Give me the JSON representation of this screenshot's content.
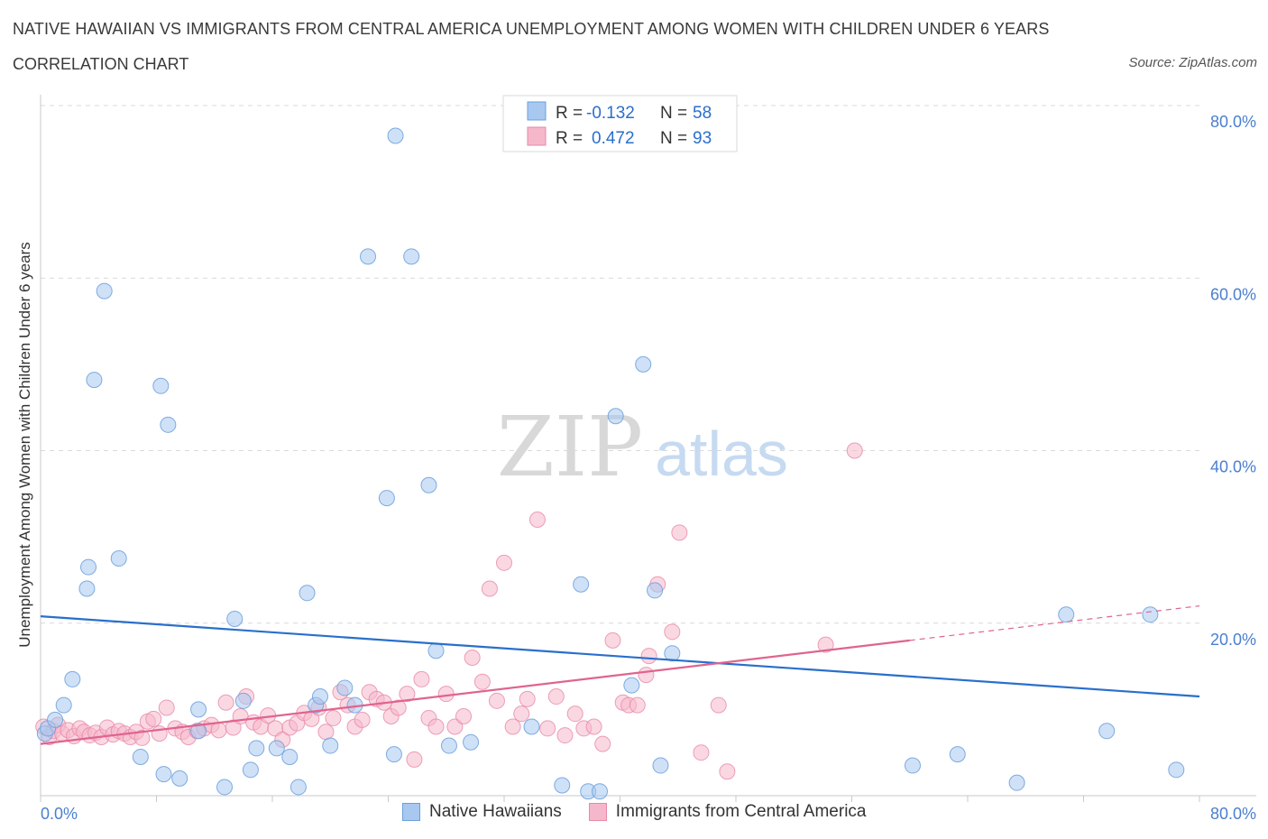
{
  "header": {
    "title": "NATIVE HAWAIIAN VS IMMIGRANTS FROM CENTRAL AMERICA UNEMPLOYMENT AMONG WOMEN WITH CHILDREN UNDER 6 YEARS",
    "subtitle": "CORRELATION CHART",
    "source": "Source: ZipAtlas.com"
  },
  "legend_box": {
    "rows": [
      {
        "r_label": "R =",
        "r_value": "-0.132",
        "n_label": "N =",
        "n_value": "58"
      },
      {
        "r_label": "R =",
        "r_value": "0.472",
        "n_label": "N =",
        "n_value": "93"
      }
    ]
  },
  "watermark": {
    "zip": "ZIP",
    "atlas": "atlas"
  },
  "colors": {
    "blue_fill": "#a8c8f0",
    "blue_stroke": "#6a9fdc",
    "blue_line": "#2a6fcb",
    "pink_fill": "#f5b8cb",
    "pink_stroke": "#e888a8",
    "pink_line": "#e0648e",
    "axis_text": "#4a7fd0",
    "grid": "#d9d9d9"
  },
  "chart_data": {
    "type": "scatter",
    "title": "NATIVE HAWAIIAN VS IMMIGRANTS FROM CENTRAL AMERICA UNEMPLOYMENT AMONG WOMEN WITH CHILDREN UNDER 6 YEARS",
    "xlabel": "",
    "ylabel": "Unemployment Among Women with Children Under 6 years",
    "xlim": [
      0,
      80
    ],
    "ylim": [
      0,
      80
    ],
    "x_tick_labels": [
      "0.0%",
      "80.0%"
    ],
    "y_tick_labels": [
      "20.0%",
      "40.0%",
      "60.0%",
      "80.0%"
    ],
    "y_ticks": [
      20,
      40,
      60,
      80
    ],
    "grid": true,
    "legend_position": "bottom",
    "series": [
      {
        "name": "Native Hawaiians",
        "color": "#a8c8f0",
        "trend": {
          "x": [
            0,
            80
          ],
          "y": [
            20.8,
            11.5
          ]
        },
        "points": [
          [
            0.3,
            7.2
          ],
          [
            0.5,
            7.8
          ],
          [
            1.0,
            8.8
          ],
          [
            1.6,
            10.5
          ],
          [
            2.2,
            13.5
          ],
          [
            3.2,
            24.0
          ],
          [
            3.3,
            26.5
          ],
          [
            3.7,
            48.2
          ],
          [
            4.4,
            58.5
          ],
          [
            5.4,
            27.5
          ],
          [
            6.9,
            4.5
          ],
          [
            8.3,
            47.5
          ],
          [
            8.5,
            2.5
          ],
          [
            8.8,
            43.0
          ],
          [
            9.6,
            2.0
          ],
          [
            10.9,
            10.0
          ],
          [
            10.9,
            7.5
          ],
          [
            12.7,
            1.0
          ],
          [
            13.4,
            20.5
          ],
          [
            14.0,
            11.0
          ],
          [
            14.5,
            3.0
          ],
          [
            14.9,
            5.5
          ],
          [
            16.3,
            5.5
          ],
          [
            17.2,
            4.5
          ],
          [
            17.8,
            1.0
          ],
          [
            18.4,
            23.5
          ],
          [
            19.0,
            10.5
          ],
          [
            19.3,
            11.5
          ],
          [
            20.0,
            5.8
          ],
          [
            21.0,
            12.5
          ],
          [
            21.7,
            10.5
          ],
          [
            22.6,
            62.5
          ],
          [
            23.9,
            34.5
          ],
          [
            24.4,
            4.8
          ],
          [
            24.5,
            76.5
          ],
          [
            25.6,
            62.5
          ],
          [
            26.8,
            36.0
          ],
          [
            27.3,
            16.8
          ],
          [
            28.2,
            5.8
          ],
          [
            29.7,
            6.2
          ],
          [
            33.9,
            8.0
          ],
          [
            36.0,
            1.2
          ],
          [
            37.3,
            24.5
          ],
          [
            37.8,
            0.5
          ],
          [
            38.6,
            0.5
          ],
          [
            39.7,
            44.0
          ],
          [
            40.8,
            12.8
          ],
          [
            41.6,
            50.0
          ],
          [
            42.4,
            23.8
          ],
          [
            42.8,
            3.5
          ],
          [
            43.6,
            16.5
          ],
          [
            60.2,
            3.5
          ],
          [
            63.3,
            4.8
          ],
          [
            67.4,
            1.5
          ],
          [
            70.8,
            21.0
          ],
          [
            73.6,
            7.5
          ],
          [
            76.6,
            21.0
          ],
          [
            78.4,
            3.0
          ]
        ]
      },
      {
        "name": "Immigrants from Central America",
        "color": "#f5b8cb",
        "trend": {
          "x": [
            0,
            60
          ],
          "y": [
            6.0,
            18.0
          ]
        },
        "trend_dashed": {
          "x": [
            60,
            80
          ],
          "y": [
            18.0,
            22.0
          ]
        },
        "points": [
          [
            0.2,
            8.0
          ],
          [
            0.6,
            6.8
          ],
          [
            0.9,
            7.5
          ],
          [
            1.2,
            8.2
          ],
          [
            1.5,
            7.2
          ],
          [
            1.9,
            7.6
          ],
          [
            2.3,
            6.9
          ],
          [
            2.7,
            7.8
          ],
          [
            3.0,
            7.4
          ],
          [
            3.4,
            7.0
          ],
          [
            3.8,
            7.3
          ],
          [
            4.2,
            6.8
          ],
          [
            4.6,
            7.9
          ],
          [
            5.0,
            7.1
          ],
          [
            5.4,
            7.5
          ],
          [
            5.8,
            7.2
          ],
          [
            6.2,
            6.8
          ],
          [
            6.6,
            7.4
          ],
          [
            7.0,
            6.7
          ],
          [
            7.4,
            8.6
          ],
          [
            7.8,
            8.9
          ],
          [
            8.2,
            7.2
          ],
          [
            8.7,
            10.2
          ],
          [
            9.3,
            7.8
          ],
          [
            9.8,
            7.4
          ],
          [
            10.2,
            6.8
          ],
          [
            10.8,
            7.5
          ],
          [
            11.3,
            7.8
          ],
          [
            11.8,
            8.2
          ],
          [
            12.3,
            7.6
          ],
          [
            12.8,
            10.8
          ],
          [
            13.3,
            7.9
          ],
          [
            13.8,
            9.2
          ],
          [
            14.2,
            11.5
          ],
          [
            14.7,
            8.5
          ],
          [
            15.2,
            8.0
          ],
          [
            15.7,
            9.3
          ],
          [
            16.2,
            7.8
          ],
          [
            16.7,
            6.5
          ],
          [
            17.2,
            7.9
          ],
          [
            17.7,
            8.4
          ],
          [
            18.2,
            9.6
          ],
          [
            18.7,
            8.9
          ],
          [
            19.2,
            10.2
          ],
          [
            19.7,
            7.4
          ],
          [
            20.2,
            9.0
          ],
          [
            20.7,
            12.0
          ],
          [
            21.2,
            10.5
          ],
          [
            21.7,
            8.0
          ],
          [
            22.2,
            8.8
          ],
          [
            22.7,
            12.0
          ],
          [
            23.2,
            11.2
          ],
          [
            23.7,
            10.8
          ],
          [
            24.2,
            9.2
          ],
          [
            24.7,
            10.2
          ],
          [
            25.3,
            11.8
          ],
          [
            25.8,
            4.2
          ],
          [
            26.3,
            13.5
          ],
          [
            26.8,
            9.0
          ],
          [
            27.3,
            8.0
          ],
          [
            28.0,
            11.8
          ],
          [
            28.6,
            8.0
          ],
          [
            29.2,
            9.2
          ],
          [
            29.8,
            16.0
          ],
          [
            30.5,
            13.2
          ],
          [
            31.0,
            24.0
          ],
          [
            31.5,
            11.0
          ],
          [
            32.0,
            27.0
          ],
          [
            32.6,
            8.0
          ],
          [
            33.2,
            9.5
          ],
          [
            33.6,
            11.2
          ],
          [
            34.3,
            32.0
          ],
          [
            35.0,
            7.8
          ],
          [
            35.6,
            11.5
          ],
          [
            36.2,
            7.0
          ],
          [
            36.9,
            9.5
          ],
          [
            37.5,
            7.8
          ],
          [
            38.2,
            8.0
          ],
          [
            38.8,
            6.0
          ],
          [
            39.5,
            18.0
          ],
          [
            40.2,
            10.8
          ],
          [
            40.6,
            10.5
          ],
          [
            41.2,
            10.5
          ],
          [
            41.8,
            14.0
          ],
          [
            42.0,
            16.2
          ],
          [
            42.6,
            24.5
          ],
          [
            43.6,
            19.0
          ],
          [
            44.1,
            30.5
          ],
          [
            45.6,
            5.0
          ],
          [
            46.8,
            10.5
          ],
          [
            47.4,
            2.8
          ],
          [
            56.2,
            40.0
          ],
          [
            54.2,
            17.5
          ]
        ]
      }
    ]
  },
  "bottom_legend": [
    {
      "label": "Native Hawaiians"
    },
    {
      "label": "Immigrants from Central America"
    }
  ]
}
